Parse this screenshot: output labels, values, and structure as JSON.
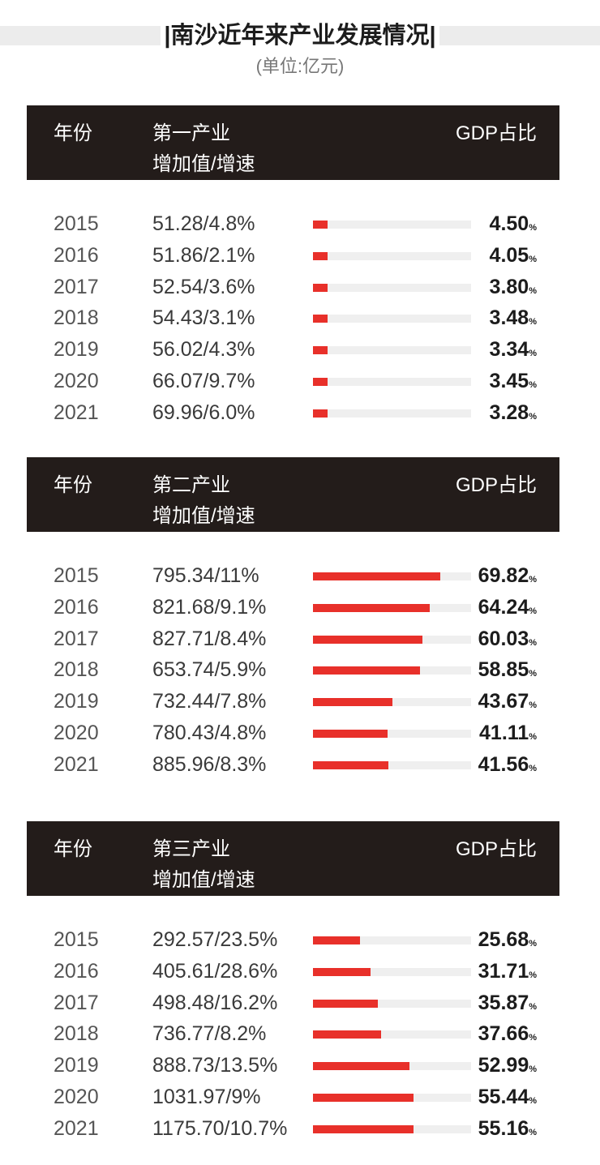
{
  "title": "|南沙近年来产业发展情况|",
  "unit": "(单位:亿元)",
  "percent_sign": "%",
  "colors": {
    "header_bg": "#231c1a",
    "bar": "#e8302a",
    "track": "#efefef"
  },
  "chart_data": [
    {
      "type": "bar",
      "header": {
        "year": "年份",
        "industry": "第一产业",
        "metric": "增加值/增速",
        "share": "GDP占比"
      },
      "categories": [
        "2015",
        "2016",
        "2017",
        "2018",
        "2019",
        "2020",
        "2021"
      ],
      "value_labels": [
        "51.28/4.8%",
        "51.86/2.1%",
        "52.54/3.6%",
        "54.43/3.1%",
        "56.02/4.3%",
        "66.07/9.7%",
        "69.96/6.0%"
      ],
      "values": [
        4.5,
        4.05,
        3.8,
        3.48,
        3.34,
        3.45,
        3.28
      ],
      "display_values": [
        "4.50",
        "4.05",
        "3.80",
        "3.48",
        "3.34",
        "3.45",
        "3.28"
      ],
      "ylim": [
        0,
        100
      ]
    },
    {
      "type": "bar",
      "header": {
        "year": "年份",
        "industry": "第二产业",
        "metric": "增加值/增速",
        "share": "GDP占比"
      },
      "categories": [
        "2015",
        "2016",
        "2017",
        "2018",
        "2019",
        "2020",
        "2021"
      ],
      "value_labels": [
        "795.34/11%",
        "821.68/9.1%",
        "827.71/8.4%",
        "653.74/5.9%",
        "732.44/7.8%",
        "780.43/4.8%",
        "885.96/8.3%"
      ],
      "values": [
        69.82,
        64.24,
        60.03,
        58.85,
        43.67,
        41.11,
        41.56
      ],
      "display_values": [
        "69.82",
        "64.24",
        "60.03",
        "58.85",
        "43.67",
        "41.11",
        "41.56"
      ],
      "ylim": [
        0,
        100
      ]
    },
    {
      "type": "bar",
      "header": {
        "year": "年份",
        "industry": "第三产业",
        "metric": "增加值/增速",
        "share": "GDP占比"
      },
      "categories": [
        "2015",
        "2016",
        "2017",
        "2018",
        "2019",
        "2020",
        "2021"
      ],
      "value_labels": [
        "292.57/23.5%",
        "405.61/28.6%",
        "498.48/16.2%",
        "736.77/8.2%",
        "888.73/13.5%",
        "1031.97/9%",
        "1175.70/10.7%"
      ],
      "values": [
        25.68,
        31.71,
        35.87,
        37.66,
        52.99,
        55.44,
        55.16
      ],
      "display_values": [
        "25.68",
        "31.71",
        "35.87",
        "37.66",
        "52.99",
        "55.44",
        "55.16"
      ],
      "ylim": [
        0,
        100
      ]
    }
  ]
}
